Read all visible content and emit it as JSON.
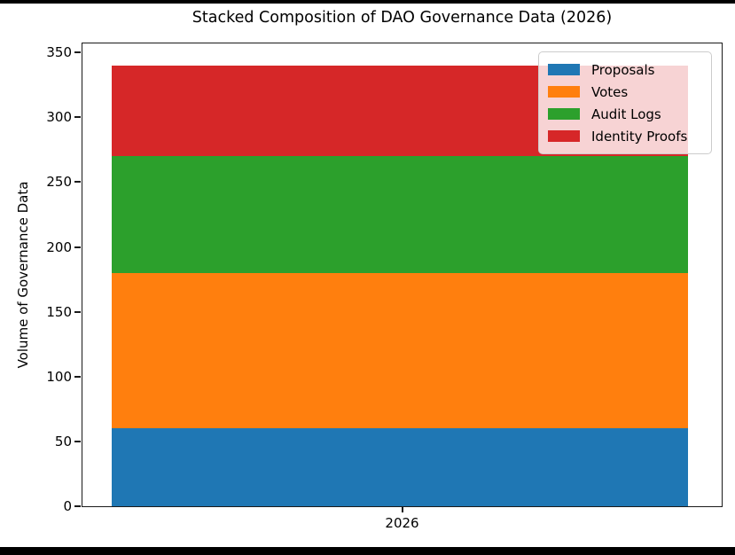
{
  "title": "Stacked Composition of DAO Governance Data (2026)",
  "chart_data": {
    "type": "bar",
    "stacked": true,
    "title": "Stacked Composition of DAO Governance Data (2026)",
    "xlabel": "",
    "ylabel": "Volume of Governance Data",
    "categories": [
      "2026"
    ],
    "series": [
      {
        "name": "Proposals",
        "values": [
          60
        ],
        "color": "#1f77b4"
      },
      {
        "name": "Votes",
        "values": [
          120
        ],
        "color": "#ff7f0e"
      },
      {
        "name": "Audit Logs",
        "values": [
          90
        ],
        "color": "#2ca02c"
      },
      {
        "name": "Identity Proofs",
        "values": [
          70
        ],
        "color": "#d62728"
      }
    ],
    "stack_total": 340,
    "ylim": [
      0,
      357
    ],
    "yticks": [
      0,
      50,
      100,
      150,
      200,
      250,
      300,
      350
    ],
    "grid": false,
    "legend_position": "upper right",
    "legend_background": "rgba(255,255,255,0.8)",
    "legend_border_color": "#cccccc",
    "axis_color": "#1a1a1a",
    "text_color": "#000000",
    "background_color": "#ffffff"
  }
}
